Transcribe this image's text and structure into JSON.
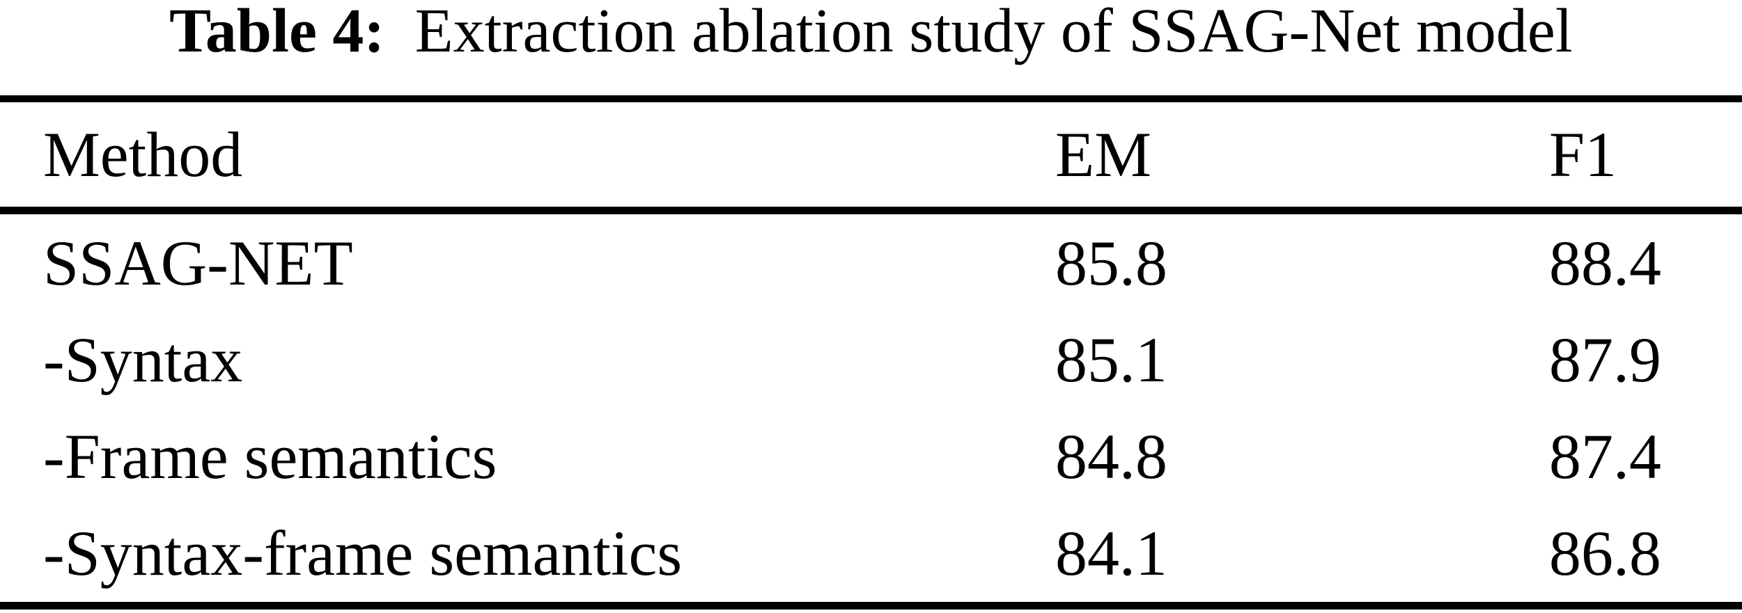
{
  "caption": {
    "label": "Table 4:",
    "text": "Extraction ablation study of SSAG-Net model"
  },
  "table": {
    "columns": [
      "Method",
      "EM",
      "F1"
    ],
    "rows": [
      {
        "method": "SSAG-NET",
        "em": "85.8",
        "f1": "88.4"
      },
      {
        "method": "-Syntax",
        "em": "85.1",
        "f1": "87.9"
      },
      {
        "method": "-Frame semantics",
        "em": "84.8",
        "f1": "87.4"
      },
      {
        "method": "-Syntax-frame semantics",
        "em": "84.1",
        "f1": "86.8"
      }
    ]
  },
  "colors": {
    "text": "#000000",
    "background": "#ffffff",
    "rule": "#000000"
  }
}
